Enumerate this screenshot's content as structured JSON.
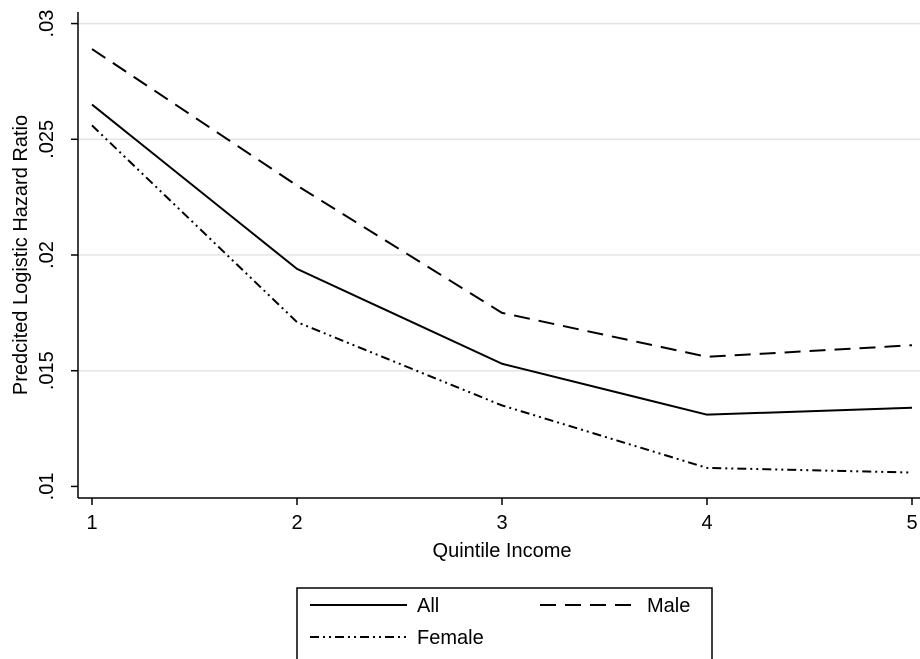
{
  "chart_data": {
    "type": "line",
    "title": "",
    "xlabel": "Quintile Income",
    "ylabel": "Predcited Logistic Hazard Ratio",
    "x": [
      1,
      2,
      3,
      4,
      5
    ],
    "xticks": [
      "1",
      "2",
      "3",
      "4",
      "5"
    ],
    "yticks": [
      {
        "value": 0.01,
        "label": ".01"
      },
      {
        "value": 0.015,
        "label": ".015"
      },
      {
        "value": 0.02,
        "label": ".02"
      },
      {
        "value": 0.025,
        "label": ".025"
      },
      {
        "value": 0.03,
        "label": ".03"
      }
    ],
    "xlim": [
      1,
      5
    ],
    "ylim": [
      0.0095,
      0.0305
    ],
    "grid": "horizontal",
    "legend_position": "bottom",
    "series": [
      {
        "name": "All",
        "style": "solid",
        "values": [
          0.0265,
          0.0194,
          0.0153,
          0.0131,
          0.0134
        ]
      },
      {
        "name": "Male",
        "style": "dashed",
        "values": [
          0.0289,
          0.023,
          0.0175,
          0.0156,
          0.0161
        ]
      },
      {
        "name": "Female",
        "style": "dash-dot-dot",
        "values": [
          0.0256,
          0.0171,
          0.0135,
          0.0108,
          0.0106
        ]
      }
    ],
    "colors": {
      "lines": "#000000",
      "grid": "#e5e5e5",
      "axis": "#000000",
      "background": "#ffffff"
    }
  }
}
